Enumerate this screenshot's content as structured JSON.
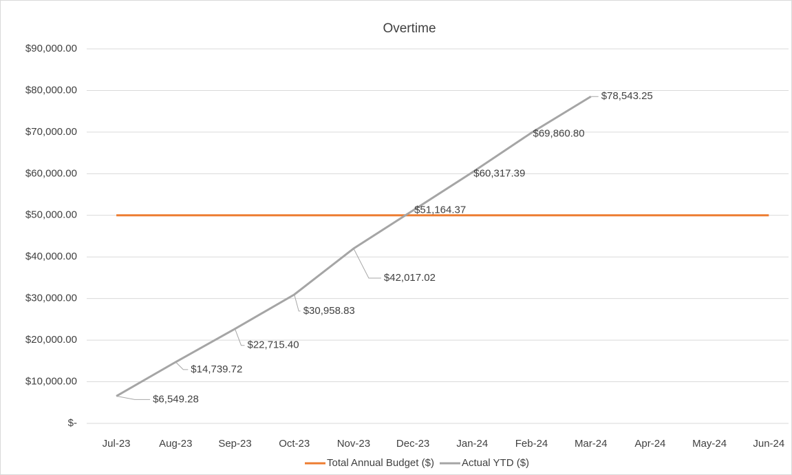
{
  "chart_data": {
    "type": "line",
    "title": "Overtime",
    "categories": [
      "Jul-23",
      "Aug-23",
      "Sep-23",
      "Oct-23",
      "Nov-23",
      "Dec-23",
      "Jan-24",
      "Feb-24",
      "Mar-24",
      "Apr-24",
      "May-24",
      "Jun-24"
    ],
    "series": [
      {
        "name": "Total Annual Budget ($)",
        "color": "#ed7d31",
        "values": [
          50000,
          50000,
          50000,
          50000,
          50000,
          50000,
          50000,
          50000,
          50000,
          50000,
          50000,
          50000
        ]
      },
      {
        "name": "Actual YTD ($)",
        "color": "#a5a5a5",
        "values": [
          6549.28,
          14739.72,
          22715.4,
          30958.83,
          42017.02,
          51164.37,
          60317.39,
          69860.8,
          78543.25,
          null,
          null,
          null
        ],
        "value_labels": [
          "$6,549.28",
          "$14,739.72",
          "$22,715.40",
          "$30,958.83",
          "$42,017.02",
          "$51,164.37",
          "$60,317.39",
          "$69,860.80",
          "$78,543.25",
          null,
          null,
          null
        ]
      }
    ],
    "ylim": [
      0,
      90000
    ],
    "yticks": [
      {
        "value": 0,
        "label": "$-"
      },
      {
        "value": 10000,
        "label": "$10,000.00"
      },
      {
        "value": 20000,
        "label": "$20,000.00"
      },
      {
        "value": 30000,
        "label": "$30,000.00"
      },
      {
        "value": 40000,
        "label": "$40,000.00"
      },
      {
        "value": 50000,
        "label": "$50,000.00"
      },
      {
        "value": 60000,
        "label": "$60,000.00"
      },
      {
        "value": 70000,
        "label": "$70,000.00"
      },
      {
        "value": 80000,
        "label": "$80,000.00"
      },
      {
        "value": 90000,
        "label": "$90,000.00"
      }
    ],
    "grid": true,
    "legend": "bottom"
  }
}
